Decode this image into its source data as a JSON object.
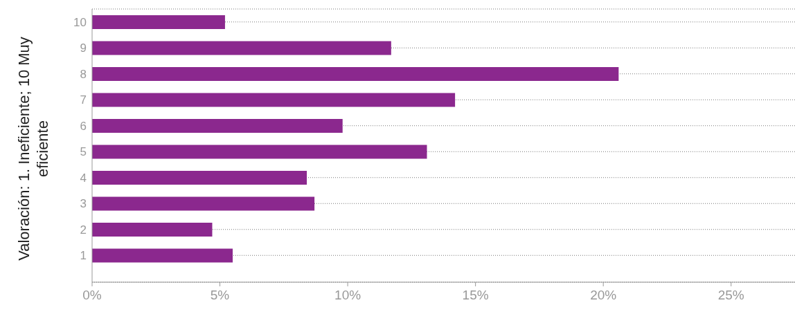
{
  "chart_data": {
    "type": "bar",
    "orientation": "horizontal",
    "ylabel": "Valoración: 1. Ineficiente; 10 Muy eficiente",
    "categories": [
      "10",
      "9",
      "8",
      "7",
      "6",
      "5",
      "4",
      "3",
      "2",
      "1"
    ],
    "values": [
      5.2,
      11.7,
      20.6,
      14.2,
      9.8,
      13.1,
      8.4,
      8.7,
      4.7,
      5.5
    ],
    "color": "#8b288e",
    "xlim": [
      0,
      27.5
    ],
    "xticks": [
      {
        "value": 0,
        "label": "0%"
      },
      {
        "value": 5,
        "label": "5%"
      },
      {
        "value": 10,
        "label": "10%"
      },
      {
        "value": 15,
        "label": "15%"
      },
      {
        "value": 20,
        "label": "20%"
      },
      {
        "value": 25,
        "label": "25%"
      }
    ],
    "grid": "y"
  }
}
